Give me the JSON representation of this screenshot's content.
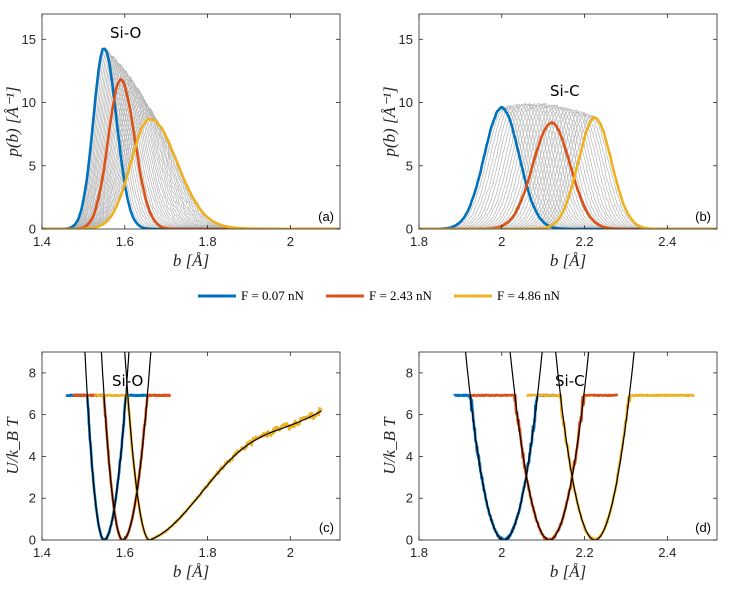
{
  "colors": {
    "blue": "#0072BD",
    "orange": "#D95319",
    "yellow": "#EDB120",
    "gray": "#b4b4b4",
    "fit": "#000000"
  },
  "legend": [
    {
      "label": "F = 0.07 nN",
      "color": "#0072BD"
    },
    {
      "label": "F = 2.43 nN",
      "color": "#D95319"
    },
    {
      "label": "F = 4.86 nN",
      "color": "#EDB120"
    }
  ],
  "chart_data": [
    {
      "id": "a",
      "type": "line",
      "panel_label": "(a)",
      "annotation": "Si-O",
      "xlabel": "b [Å]",
      "ylabel": "p(b) [Å⁻¹]",
      "xlim": [
        1.4,
        2.12
      ],
      "ylim": [
        0,
        17
      ],
      "xticks": [
        1.4,
        1.6,
        1.8,
        2.0
      ],
      "xticklabels": [
        "1.4",
        "1.6",
        "1.8",
        "2"
      ],
      "yticks": [
        0,
        5,
        10,
        15
      ],
      "yticklabels": [
        "0",
        "5",
        "10",
        "15"
      ],
      "series": [
        {
          "name": "F = 0.07 nN",
          "color": "blue",
          "kind": "gauss",
          "mu": 1.55,
          "peak": 14.3,
          "sl": 0.026,
          "sr": 0.03
        },
        {
          "name": "F = 2.43 nN",
          "color": "orange",
          "kind": "gauss",
          "mu": 1.59,
          "peak": 11.8,
          "sl": 0.03,
          "sr": 0.034
        },
        {
          "name": "F = 4.86 nN",
          "color": "yellow",
          "kind": "gauss",
          "mu": 1.66,
          "peak": 8.7,
          "sl": 0.045,
          "sr": 0.065,
          "tail": 0.25
        }
      ],
      "band": {
        "from": 0,
        "to": 2,
        "count": 30
      }
    },
    {
      "id": "b",
      "type": "line",
      "panel_label": "(b)",
      "annotation": "Si-C",
      "xlabel": "b [Å]",
      "ylabel": "p(b) [Å⁻¹]",
      "xlim": [
        1.8,
        2.52
      ],
      "ylim": [
        0,
        17
      ],
      "xticks": [
        1.8,
        2.0,
        2.2,
        2.4
      ],
      "xticklabels": [
        "1.8",
        "2",
        "2.2",
        "2.4"
      ],
      "yticks": [
        0,
        5,
        10,
        15
      ],
      "yticklabels": [
        "0",
        "5",
        "10",
        "15"
      ],
      "series": [
        {
          "name": "F = 0.07 nN",
          "color": "blue",
          "kind": "gauss",
          "mu": 2.0,
          "peak": 9.6,
          "sl": 0.042,
          "sr": 0.042
        },
        {
          "name": "F = 2.43 nN",
          "color": "orange",
          "kind": "gauss",
          "mu": 2.12,
          "peak": 8.4,
          "sl": 0.045,
          "sr": 0.045
        },
        {
          "name": "F = 4.86 nN",
          "color": "yellow",
          "kind": "gauss",
          "mu": 2.225,
          "peak": 8.8,
          "sl": 0.04,
          "sr": 0.04
        }
      ],
      "band": {
        "from": 0,
        "to": 2,
        "count": 30
      }
    },
    {
      "id": "c",
      "type": "line",
      "panel_label": "(c)",
      "annotation": "Si-O",
      "xlabel": "b [Å]",
      "ylabel": "U/k_B T",
      "xlim": [
        1.4,
        2.12
      ],
      "ylim": [
        0,
        9
      ],
      "xticks": [
        1.4,
        1.6,
        1.8,
        2.0
      ],
      "xticklabels": [
        "1.4",
        "1.6",
        "1.8",
        "2"
      ],
      "yticks": [
        0,
        2,
        4,
        6,
        8
      ],
      "yticklabels": [
        "0",
        "2",
        "4",
        "6",
        "8"
      ],
      "series": [
        {
          "name": "F = 0.07 nN",
          "color": "blue",
          "kind": "well",
          "min": 1.55,
          "kl": 4200,
          "kr": 2500,
          "xmin": 1.458,
          "xmax": 1.655
        },
        {
          "name": "F = 2.43 nN",
          "color": "orange",
          "kind": "well",
          "min": 1.595,
          "kl": 3400,
          "kr": 1950,
          "xmin": 1.475,
          "xmax": 1.71
        },
        {
          "name": "F = 4.86 nN",
          "color": "yellow",
          "kind": "tail",
          "min": 1.66,
          "kl": 2500,
          "xmin": 1.527,
          "xmax": 2.075
        }
      ],
      "fits": [
        {
          "min": 1.55,
          "kl": 4200,
          "kr": 2500,
          "xmin": 1.46,
          "xmax": 1.672
        },
        {
          "min": 1.595,
          "kl": 3400,
          "kr": 1950,
          "xmin": 1.478,
          "xmax": 1.728
        },
        {
          "min": 1.66,
          "kl": 2500,
          "kind": "tail",
          "xmin": 1.53,
          "xmax": 2.075
        }
      ]
    },
    {
      "id": "d",
      "type": "line",
      "panel_label": "(d)",
      "annotation": "Si-C",
      "xlabel": "b [Å]",
      "ylabel": "U/k_B T",
      "xlim": [
        1.8,
        2.52
      ],
      "ylim": [
        0,
        9
      ],
      "xticks": [
        1.8,
        2.0,
        2.2,
        2.4
      ],
      "xticklabels": [
        "1.8",
        "2",
        "2.2",
        "2.4"
      ],
      "yticks": [
        0,
        2,
        4,
        6,
        8
      ],
      "yticklabels": [
        "0",
        "2",
        "4",
        "6",
        "8"
      ],
      "series": [
        {
          "name": "F = 0.07 nN",
          "color": "blue",
          "kind": "well",
          "min": 2.005,
          "kl": 1050,
          "kr": 1050,
          "xmin": 1.885,
          "xmax": 2.13
        },
        {
          "name": "F = 2.43 nN",
          "color": "orange",
          "kind": "well",
          "min": 2.115,
          "kl": 1000,
          "kr": 1000,
          "xmin": 1.925,
          "xmax": 2.28
        },
        {
          "name": "F = 4.86 nN",
          "color": "yellow",
          "kind": "well",
          "min": 2.225,
          "kl": 1000,
          "kr": 1000,
          "xmin": 2.06,
          "xmax": 2.465
        }
      ],
      "fits": [
        {
          "min": 2.005,
          "kl": 1050,
          "kr": 1050,
          "xmin": 1.845,
          "xmax": 2.168
        },
        {
          "min": 2.115,
          "kl": 1000,
          "kr": 1000,
          "xmin": 1.95,
          "xmax": 2.285
        },
        {
          "min": 2.225,
          "kl": 1000,
          "kr": 1000,
          "xmin": 2.06,
          "xmax": 2.39
        }
      ]
    }
  ]
}
